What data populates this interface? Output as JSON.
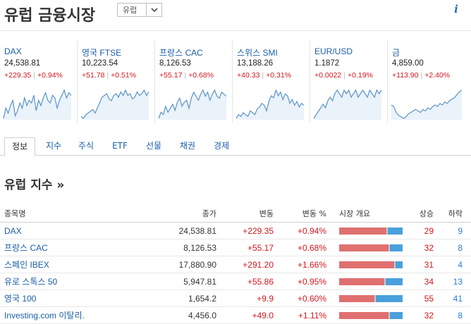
{
  "header": {
    "title": "유럽 금융시장",
    "region": "유럽"
  },
  "tickers": [
    {
      "name": "DAX",
      "price": "24,538.81",
      "change": "+229.35",
      "pct": "+0.94%",
      "spark": [
        10,
        18,
        14,
        20,
        24,
        12,
        16,
        22,
        18,
        26,
        20,
        24,
        22,
        28,
        16,
        24,
        20,
        26,
        30,
        24,
        22,
        28,
        26,
        18,
        24,
        28,
        32,
        26,
        30,
        28
      ]
    },
    {
      "name": "영국 FTSE",
      "price": "10,223.54",
      "change": "+51.78",
      "pct": "+0.51%",
      "spark": [
        6,
        4,
        8,
        10,
        12,
        14,
        10,
        16,
        22,
        28,
        30,
        32,
        26,
        24,
        30,
        32,
        28,
        34,
        30,
        36,
        30,
        32,
        26,
        28,
        34,
        30,
        32,
        36,
        30,
        34
      ]
    },
    {
      "name": "프랑스 CAC",
      "price": "8,126.53",
      "change": "+55.17",
      "pct": "+0.68%",
      "spark": [
        8,
        14,
        12,
        20,
        14,
        18,
        22,
        16,
        24,
        28,
        20,
        24,
        26,
        18,
        28,
        34,
        30,
        26,
        32,
        36,
        30,
        34,
        26,
        32,
        36,
        30,
        28,
        34,
        32,
        30
      ]
    },
    {
      "name": "스위스 SMI",
      "price": "13,188.26",
      "change": "+40.33",
      "pct": "+0.31%",
      "spark": [
        6,
        10,
        8,
        12,
        10,
        8,
        14,
        12,
        10,
        16,
        18,
        22,
        20,
        14,
        24,
        30,
        28,
        36,
        30,
        34,
        26,
        32,
        30,
        22,
        26,
        20,
        24,
        18,
        22,
        20
      ]
    },
    {
      "name": "EUR/USD",
      "price": "1.1872",
      "change": "+0.0022",
      "pct": "+0.19%",
      "spark": [
        14,
        16,
        18,
        20,
        22,
        20,
        24,
        26,
        24,
        28,
        30,
        28,
        26,
        30,
        28,
        30,
        26,
        28,
        30,
        26,
        28,
        30,
        28,
        26,
        30,
        28,
        26,
        30,
        28,
        30
      ]
    },
    {
      "name": "금",
      "price": "4,859.00",
      "change": "+113.90",
      "pct": "+2.40%",
      "spark": [
        22,
        20,
        12,
        8,
        6,
        4,
        6,
        10,
        12,
        14,
        16,
        14,
        12,
        16,
        14,
        18,
        16,
        20,
        22,
        20,
        24,
        22,
        26,
        24,
        28,
        30,
        32,
        36,
        40,
        42
      ]
    }
  ],
  "tabs": [
    "정보",
    "지수",
    "주식",
    "ETF",
    "선물",
    "채권",
    "경제"
  ],
  "section": {
    "title": "유럽 지수 »"
  },
  "table": {
    "headers": {
      "name": "종목명",
      "price": "종가",
      "chg": "변동",
      "pct": "변동 %",
      "overview": "시장 개요",
      "up": "상승",
      "down": "하락"
    },
    "rows": [
      {
        "name": "DAX",
        "price": "24,538.81",
        "chg": "+229.35",
        "pct": "+0.94%",
        "up": "29",
        "down": "9"
      },
      {
        "name": "프랑스 CAC",
        "price": "8,126.53",
        "chg": "+55.17",
        "pct": "+0.68%",
        "up": "32",
        "down": "8"
      },
      {
        "name": "스페인 IBEX",
        "price": "17,880.90",
        "chg": "+291.20",
        "pct": "+1.66%",
        "up": "31",
        "down": "4"
      },
      {
        "name": "유로 스톡스 50",
        "price": "5,947.81",
        "chg": "+55.86",
        "pct": "+0.95%",
        "up": "34",
        "down": "13"
      },
      {
        "name": "영국 100",
        "price": "1,654.2",
        "chg": "+9.9",
        "pct": "+0.60%",
        "up": "55",
        "down": "41"
      },
      {
        "name": "Investing.com 이탈리.",
        "price": "4,456.0",
        "chg": "+49.0",
        "pct": "+1.11%",
        "up": "32",
        "down": "8"
      }
    ]
  },
  "colors": {
    "up": "#d4161c",
    "down": "#2a7bd4",
    "link": "#1b5ea8",
    "bar_up": "#e07070",
    "bar_down": "#4aa0dc"
  }
}
